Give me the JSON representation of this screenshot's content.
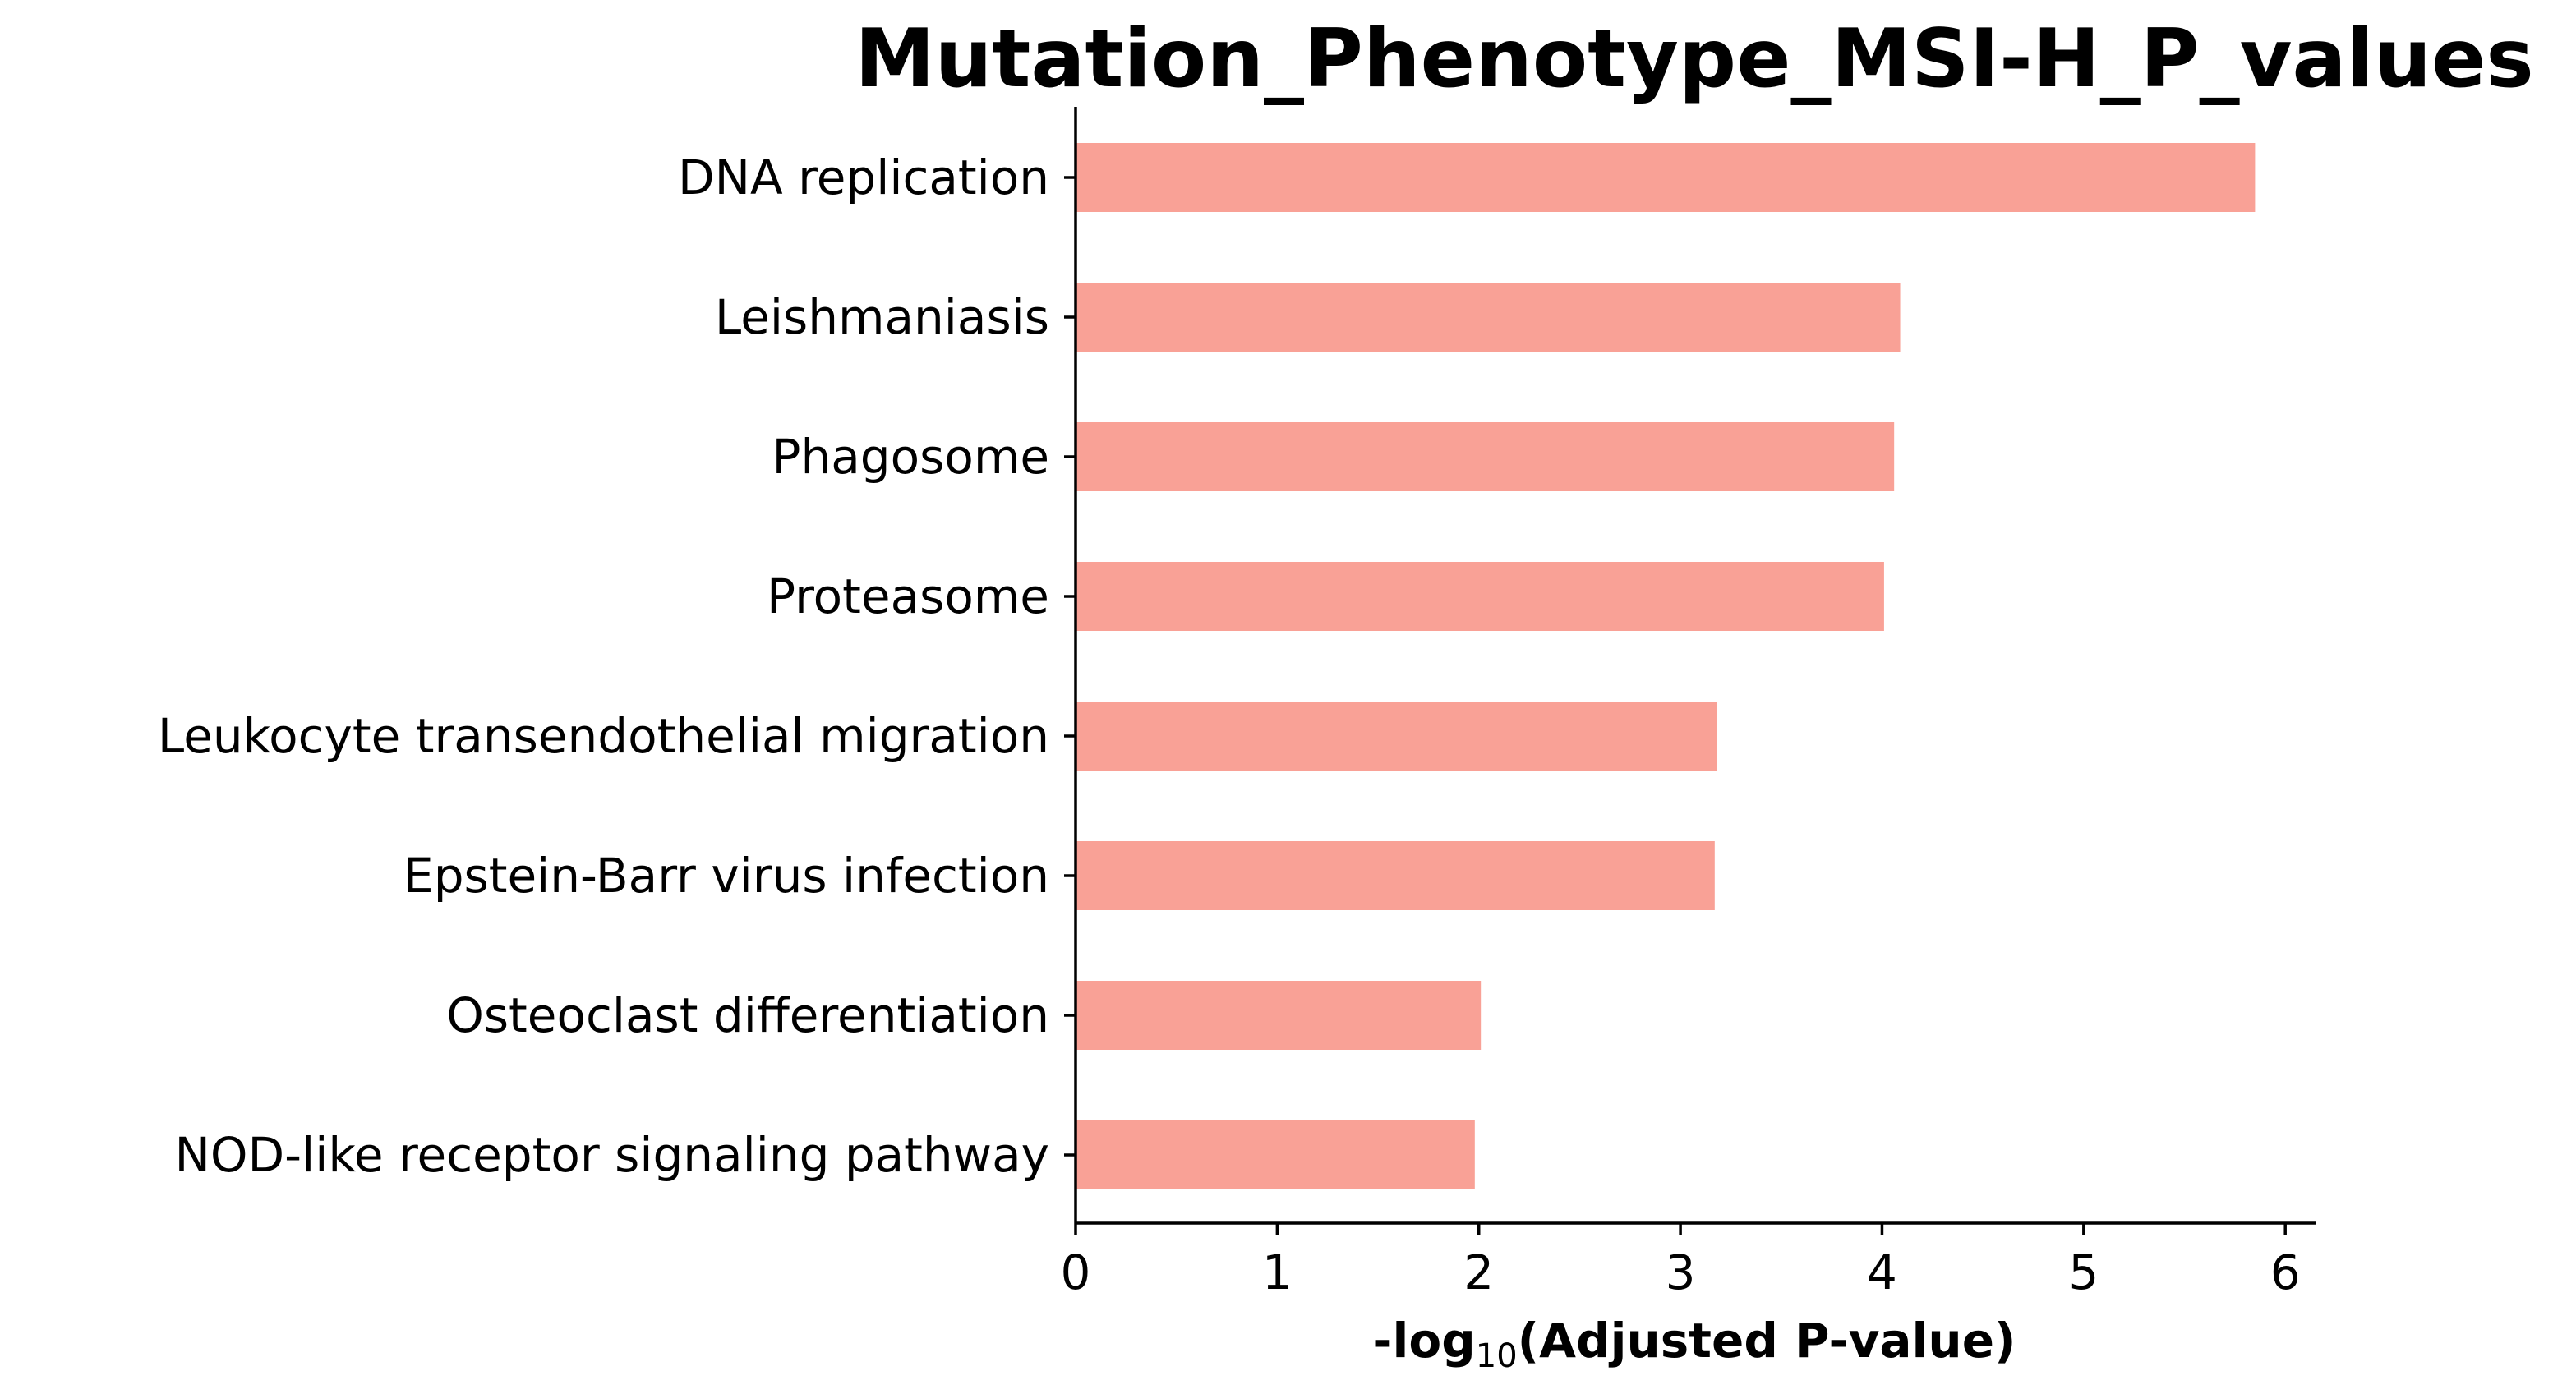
{
  "chart_data": {
    "type": "bar",
    "orientation": "horizontal",
    "title": "Mutation_Phenotype_MSI-H_P_values",
    "xlabel": {
      "prefix": "-log",
      "subscript": "10",
      "suffix": "(Adjusted P-value)"
    },
    "ylabel": "",
    "categories": [
      "DNA replication",
      "Leishmaniasis",
      "Phagosome",
      "Proteasome",
      "Leukocyte transendothelial migration",
      "Epstein-Barr virus infection",
      "Osteoclast differentiation",
      "NOD-like receptor signaling pathway"
    ],
    "values": [
      5.85,
      4.09,
      4.06,
      4.01,
      3.18,
      3.17,
      2.01,
      1.98
    ],
    "xlim": [
      0,
      6.15
    ],
    "xticks": [
      0,
      1,
      2,
      3,
      4,
      5,
      6
    ],
    "bar_color": "#f9a196",
    "grid": false,
    "legend": "none"
  }
}
